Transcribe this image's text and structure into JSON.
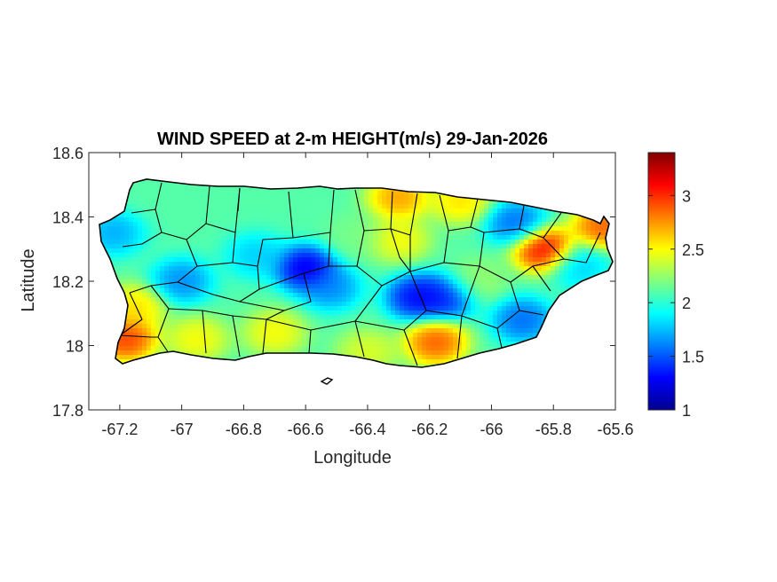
{
  "figure": {
    "title": "WIND SPEED at 2-m HEIGHT(m/s) 29-Jan-2026",
    "xlabel": "Longitude",
    "ylabel": "Latitude"
  },
  "chart_data": {
    "type": "heatmap",
    "title": "WIND SPEED at 2-m HEIGHT(m/s) 29-Jan-2026",
    "xlabel": "Longitude",
    "ylabel": "Latitude",
    "xlim": [
      -67.3,
      -65.6
    ],
    "ylim": [
      17.8,
      18.6
    ],
    "x_ticks": [
      -67.2,
      -67,
      -66.8,
      -66.6,
      -66.4,
      -66.2,
      -66,
      -65.8,
      -65.6
    ],
    "x_tick_labels": [
      "-67.2",
      "-67",
      "-66.8",
      "-66.6",
      "-66.4",
      "-66.2",
      "-66",
      "-65.8",
      "-65.6"
    ],
    "y_ticks": [
      17.8,
      18,
      18.2,
      18.4,
      18.6
    ],
    "y_tick_labels": [
      "17.8",
      "18",
      "18.2",
      "18.4",
      "18.6"
    ],
    "colorbar": {
      "colormap": "jet",
      "range": [
        1,
        3.4
      ],
      "ticks": [
        1,
        1.5,
        2,
        2.5,
        3
      ],
      "tick_labels": [
        "1",
        "1.5",
        "2",
        "2.5",
        "3"
      ]
    },
    "grid": false,
    "region": "Puerto Rico",
    "background_value": 2.1,
    "field_features": [
      {
        "lon": -66.6,
        "lat": 18.24,
        "value": 1.0
      },
      {
        "lon": -66.24,
        "lat": 18.15,
        "value": 1.1
      },
      {
        "lon": -66.15,
        "lat": 18.15,
        "value": 1.2
      },
      {
        "lon": -67.0,
        "lat": 18.2,
        "value": 1.5
      },
      {
        "lon": -67.22,
        "lat": 18.35,
        "value": 1.6
      },
      {
        "lon": -65.92,
        "lat": 18.38,
        "value": 1.4
      },
      {
        "lon": -65.9,
        "lat": 18.08,
        "value": 1.4
      },
      {
        "lon": -66.52,
        "lat": 18.18,
        "value": 1.5
      },
      {
        "lon": -66.76,
        "lat": 18.28,
        "value": 1.7
      },
      {
        "lon": -65.72,
        "lat": 18.25,
        "value": 1.7
      },
      {
        "lon": -67.18,
        "lat": 18.02,
        "value": 3.2
      },
      {
        "lon": -67.15,
        "lat": 18.12,
        "value": 2.7
      },
      {
        "lon": -66.95,
        "lat": 18.02,
        "value": 2.6
      },
      {
        "lon": -66.7,
        "lat": 18.04,
        "value": 2.6
      },
      {
        "lon": -66.4,
        "lat": 17.98,
        "value": 2.5
      },
      {
        "lon": -66.18,
        "lat": 18.01,
        "value": 3.1
      },
      {
        "lon": -65.83,
        "lat": 18.3,
        "value": 3.4
      },
      {
        "lon": -65.64,
        "lat": 18.37,
        "value": 3.1
      },
      {
        "lon": -66.3,
        "lat": 18.46,
        "value": 2.9
      },
      {
        "lon": -66.1,
        "lat": 18.45,
        "value": 2.7
      },
      {
        "lon": -66.3,
        "lat": 18.33,
        "value": 2.6
      },
      {
        "lon": -66.05,
        "lat": 18.2,
        "value": 2.3
      },
      {
        "lon": -66.44,
        "lat": 18.34,
        "value": 2.2
      },
      {
        "lon": -67.08,
        "lat": 18.48,
        "value": 2.1
      }
    ]
  }
}
